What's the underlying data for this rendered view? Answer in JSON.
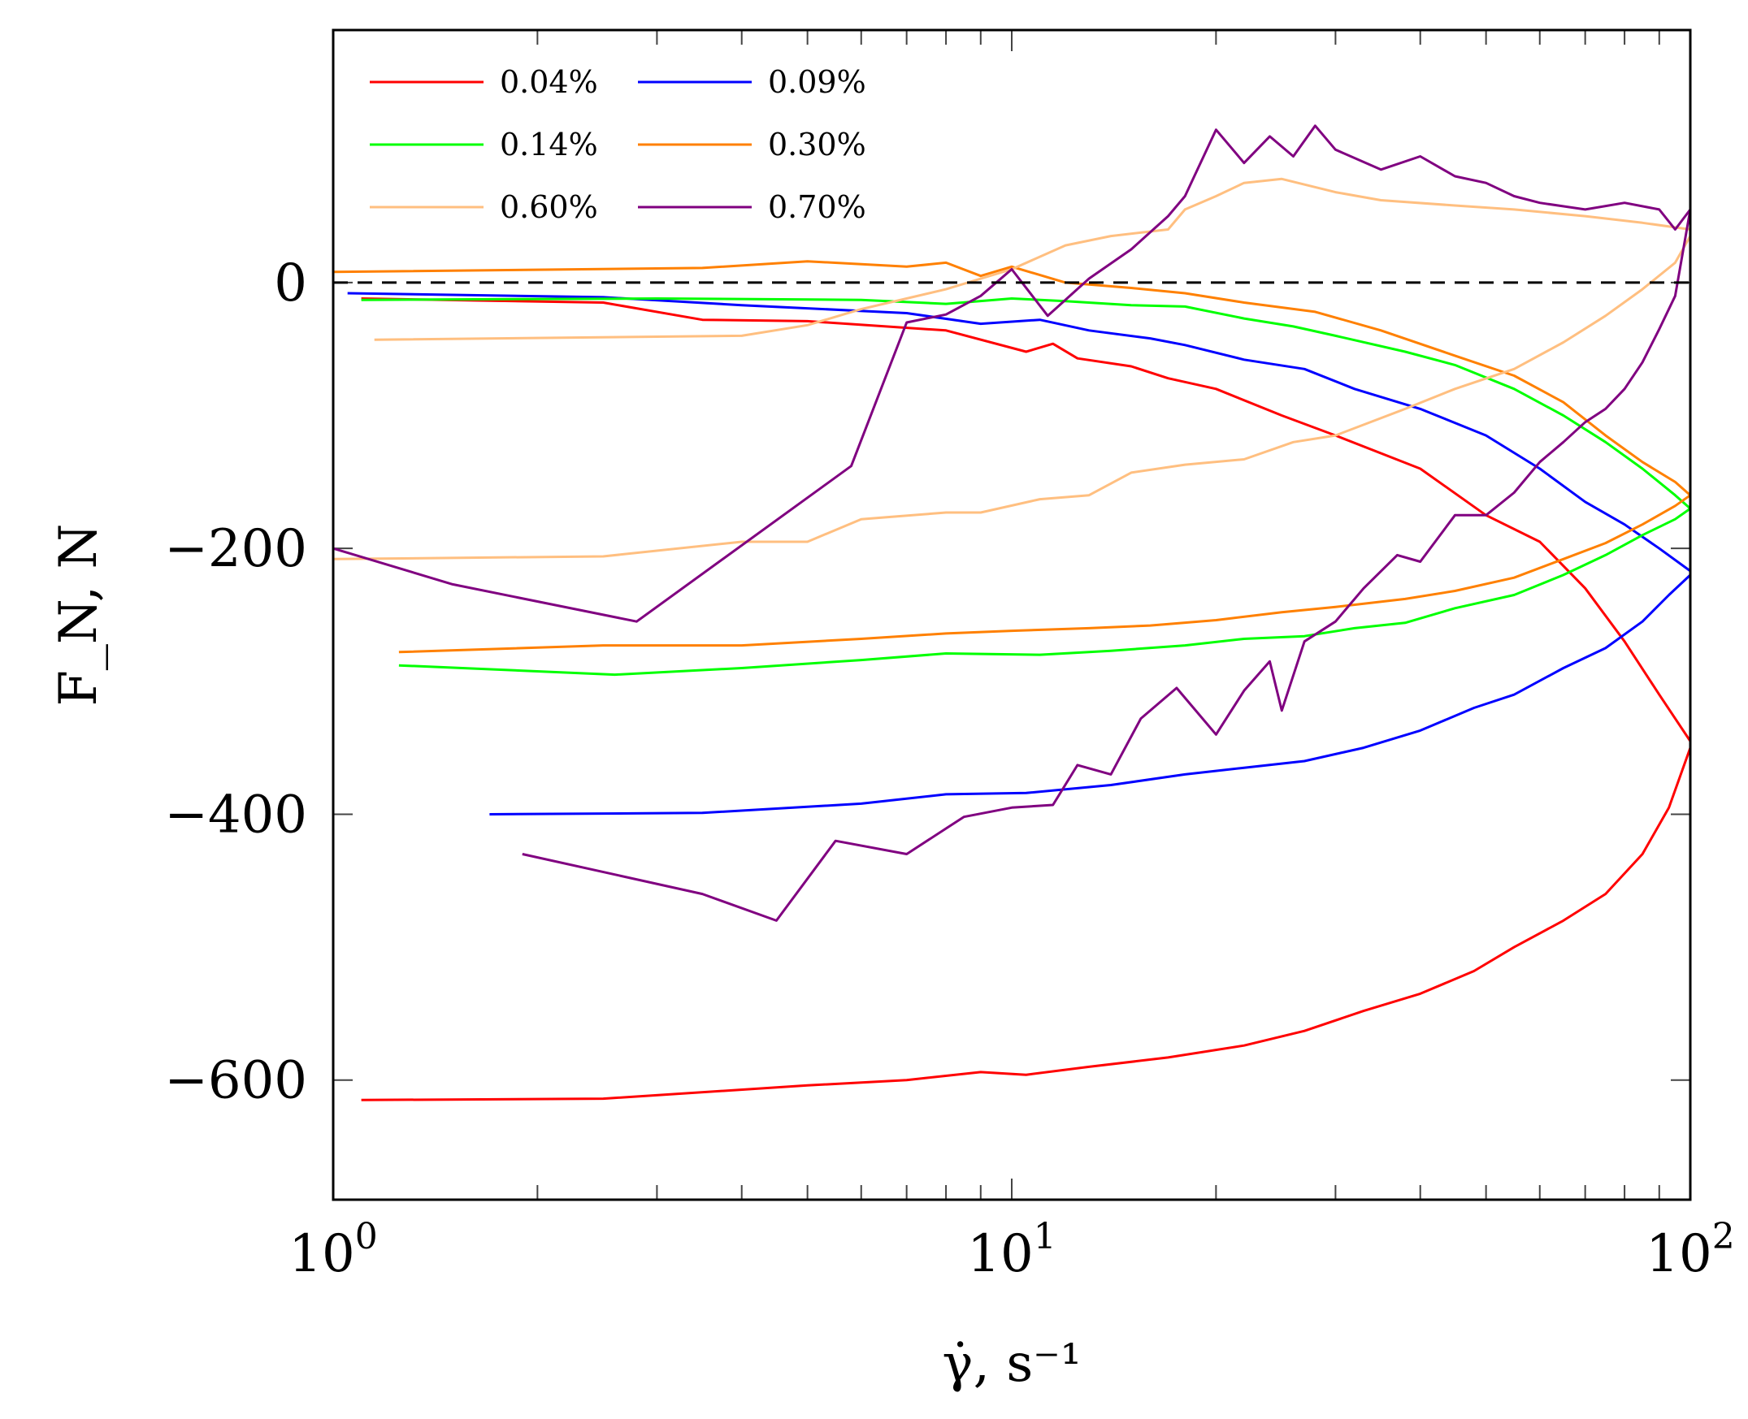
{
  "chart_data": {
    "type": "line",
    "title": "",
    "xlabel": "γ̇, s⁻¹",
    "ylabel": "F_N, N",
    "xscale": "log",
    "xlim": [
      1,
      100
    ],
    "ylim": [
      -690,
      190
    ],
    "x_tick_labels": [
      {
        "value": 1,
        "base": "10",
        "exp": "0"
      },
      {
        "value": 10,
        "base": "10",
        "exp": "1"
      },
      {
        "value": 100,
        "base": "10",
        "exp": "2"
      }
    ],
    "y_tick_labels": [
      {
        "value": 0,
        "label": "0"
      },
      {
        "value": -200,
        "label": "−200"
      },
      {
        "value": -400,
        "label": "−400"
      },
      {
        "value": -600,
        "label": "−600"
      }
    ],
    "reference_line": {
      "y": 0,
      "style": "dashed",
      "color": "#000000"
    },
    "legend_position": "top-left",
    "series": [
      {
        "name": "0.04%",
        "color": "#ff0000",
        "up": [
          [
            1.1,
            -12
          ],
          [
            2.5,
            -15
          ],
          [
            3.5,
            -28
          ],
          [
            5,
            -29
          ],
          [
            8,
            -36
          ],
          [
            10.5,
            -52
          ],
          [
            11.5,
            -46
          ],
          [
            12.5,
            -57
          ],
          [
            15,
            -63
          ],
          [
            17,
            -72
          ],
          [
            20,
            -80
          ],
          [
            25,
            -100
          ],
          [
            30,
            -115
          ],
          [
            40,
            -140
          ],
          [
            50,
            -175
          ],
          [
            60,
            -195
          ],
          [
            70,
            -230
          ],
          [
            80,
            -270
          ],
          [
            90,
            -310
          ],
          [
            100,
            -345
          ]
        ],
        "down": [
          [
            1.1,
            -615
          ],
          [
            2.5,
            -614
          ],
          [
            5,
            -604
          ],
          [
            7,
            -600
          ],
          [
            9,
            -594
          ],
          [
            10.5,
            -596
          ],
          [
            13,
            -590
          ],
          [
            17,
            -583
          ],
          [
            22,
            -574
          ],
          [
            27,
            -563
          ],
          [
            33,
            -548
          ],
          [
            40,
            -535
          ],
          [
            48,
            -518
          ],
          [
            55,
            -500
          ],
          [
            65,
            -480
          ],
          [
            75,
            -460
          ],
          [
            85,
            -430
          ],
          [
            93,
            -395
          ],
          [
            100,
            -350
          ]
        ]
      },
      {
        "name": "0.09%",
        "color": "#0000ff",
        "up": [
          [
            1.05,
            -8
          ],
          [
            2.5,
            -11
          ],
          [
            4,
            -17
          ],
          [
            7,
            -23
          ],
          [
            9,
            -31
          ],
          [
            11,
            -28
          ],
          [
            13,
            -36
          ],
          [
            16,
            -42
          ],
          [
            18,
            -47
          ],
          [
            22,
            -58
          ],
          [
            27,
            -65
          ],
          [
            32,
            -80
          ],
          [
            40,
            -95
          ],
          [
            50,
            -115
          ],
          [
            60,
            -140
          ],
          [
            70,
            -165
          ],
          [
            80,
            -182
          ],
          [
            90,
            -200
          ],
          [
            100,
            -217
          ]
        ],
        "down": [
          [
            1.7,
            -400
          ],
          [
            3.5,
            -399
          ],
          [
            6,
            -392
          ],
          [
            8,
            -385
          ],
          [
            10.5,
            -384
          ],
          [
            14,
            -378
          ],
          [
            18,
            -370
          ],
          [
            22,
            -365
          ],
          [
            27,
            -360
          ],
          [
            33,
            -350
          ],
          [
            40,
            -337
          ],
          [
            48,
            -320
          ],
          [
            55,
            -310
          ],
          [
            65,
            -290
          ],
          [
            75,
            -275
          ],
          [
            85,
            -255
          ],
          [
            93,
            -235
          ],
          [
            100,
            -220
          ]
        ]
      },
      {
        "name": "0.14%",
        "color": "#00ff00",
        "up": [
          [
            1.1,
            -13
          ],
          [
            3,
            -12
          ],
          [
            6,
            -13
          ],
          [
            8,
            -16
          ],
          [
            10,
            -12
          ],
          [
            12,
            -14
          ],
          [
            15,
            -17
          ],
          [
            18,
            -18
          ],
          [
            22,
            -27
          ],
          [
            26,
            -33
          ],
          [
            30,
            -40
          ],
          [
            38,
            -52
          ],
          [
            45,
            -62
          ],
          [
            55,
            -80
          ],
          [
            65,
            -100
          ],
          [
            75,
            -120
          ],
          [
            85,
            -140
          ],
          [
            95,
            -160
          ],
          [
            100,
            -170
          ]
        ],
        "down": [
          [
            1.25,
            -288
          ],
          [
            2.6,
            -295
          ],
          [
            4,
            -290
          ],
          [
            6,
            -284
          ],
          [
            8,
            -279
          ],
          [
            11,
            -280
          ],
          [
            14,
            -277
          ],
          [
            18,
            -273
          ],
          [
            22,
            -268
          ],
          [
            27,
            -266
          ],
          [
            32,
            -260
          ],
          [
            38,
            -256
          ],
          [
            45,
            -245
          ],
          [
            55,
            -235
          ],
          [
            65,
            -220
          ],
          [
            75,
            -205
          ],
          [
            85,
            -190
          ],
          [
            95,
            -178
          ],
          [
            100,
            -170
          ]
        ]
      },
      {
        "name": "0.30%",
        "color": "#ff8000",
        "up": [
          [
            1,
            8
          ],
          [
            3.5,
            11
          ],
          [
            5,
            16
          ],
          [
            7,
            12
          ],
          [
            8,
            15
          ],
          [
            9,
            5
          ],
          [
            10,
            12
          ],
          [
            12,
            0
          ],
          [
            15,
            -4
          ],
          [
            18,
            -8
          ],
          [
            22,
            -15
          ],
          [
            28,
            -22
          ],
          [
            35,
            -36
          ],
          [
            45,
            -55
          ],
          [
            55,
            -70
          ],
          [
            65,
            -90
          ],
          [
            75,
            -115
          ],
          [
            85,
            -135
          ],
          [
            95,
            -150
          ],
          [
            100,
            -160
          ]
        ],
        "down": [
          [
            1.25,
            -278
          ],
          [
            2.5,
            -273
          ],
          [
            4,
            -273
          ],
          [
            6,
            -268
          ],
          [
            8,
            -264
          ],
          [
            10,
            -262
          ],
          [
            13,
            -260
          ],
          [
            16,
            -258
          ],
          [
            20,
            -254
          ],
          [
            25,
            -248
          ],
          [
            30,
            -244
          ],
          [
            38,
            -238
          ],
          [
            45,
            -232
          ],
          [
            55,
            -222
          ],
          [
            65,
            -208
          ],
          [
            75,
            -196
          ],
          [
            85,
            -182
          ],
          [
            95,
            -168
          ],
          [
            100,
            -160
          ]
        ]
      },
      {
        "name": "0.60%",
        "color": "#ffbf80",
        "up": [
          [
            1.15,
            -43
          ],
          [
            4,
            -40
          ],
          [
            5,
            -32
          ],
          [
            6,
            -20
          ],
          [
            8,
            -5
          ],
          [
            10,
            10
          ],
          [
            12,
            28
          ],
          [
            14,
            35
          ],
          [
            17,
            40
          ],
          [
            18,
            55
          ],
          [
            20,
            65
          ],
          [
            22,
            75
          ],
          [
            25,
            78
          ],
          [
            30,
            68
          ],
          [
            35,
            62
          ],
          [
            45,
            58
          ],
          [
            55,
            55
          ],
          [
            70,
            50
          ],
          [
            85,
            45
          ],
          [
            100,
            40
          ]
        ],
        "down": [
          [
            1,
            -208
          ],
          [
            2.5,
            -206
          ],
          [
            4,
            -195
          ],
          [
            5,
            -195
          ],
          [
            6,
            -178
          ],
          [
            8,
            -173
          ],
          [
            9,
            -173
          ],
          [
            11,
            -163
          ],
          [
            13,
            -160
          ],
          [
            15,
            -143
          ],
          [
            18,
            -137
          ],
          [
            22,
            -133
          ],
          [
            26,
            -120
          ],
          [
            30,
            -115
          ],
          [
            38,
            -95
          ],
          [
            45,
            -80
          ],
          [
            55,
            -65
          ],
          [
            65,
            -45
          ],
          [
            75,
            -25
          ],
          [
            85,
            -5
          ],
          [
            95,
            15
          ],
          [
            100,
            35
          ]
        ]
      },
      {
        "name": "0.70%",
        "color": "#800080",
        "up": [
          [
            1,
            -200
          ],
          [
            1.5,
            -227
          ],
          [
            2.8,
            -255
          ],
          [
            5.8,
            -138
          ],
          [
            7,
            -30
          ],
          [
            8,
            -24
          ],
          [
            9,
            -10
          ],
          [
            10,
            10
          ],
          [
            11.3,
            -25
          ],
          [
            13,
            3
          ],
          [
            15,
            25
          ],
          [
            17,
            50
          ],
          [
            18,
            65
          ],
          [
            20,
            115
          ],
          [
            22,
            90
          ],
          [
            24,
            110
          ],
          [
            26,
            95
          ],
          [
            28,
            118
          ],
          [
            30,
            100
          ],
          [
            35,
            85
          ],
          [
            40,
            95
          ],
          [
            45,
            80
          ],
          [
            50,
            75
          ],
          [
            55,
            65
          ],
          [
            60,
            60
          ],
          [
            70,
            55
          ],
          [
            80,
            60
          ],
          [
            90,
            55
          ],
          [
            95,
            40
          ],
          [
            100,
            55
          ]
        ],
        "down": [
          [
            1.9,
            -430
          ],
          [
            3.5,
            -460
          ],
          [
            4.5,
            -480
          ],
          [
            5.5,
            -420
          ],
          [
            7,
            -430
          ],
          [
            8.5,
            -402
          ],
          [
            10,
            -395
          ],
          [
            11.5,
            -393
          ],
          [
            12.5,
            -363
          ],
          [
            14,
            -370
          ],
          [
            15.5,
            -328
          ],
          [
            17.5,
            -305
          ],
          [
            20,
            -340
          ],
          [
            22,
            -307
          ],
          [
            24,
            -285
          ],
          [
            25,
            -322
          ],
          [
            27,
            -270
          ],
          [
            30,
            -255
          ],
          [
            33,
            -230
          ],
          [
            37,
            -205
          ],
          [
            40,
            -210
          ],
          [
            45,
            -175
          ],
          [
            50,
            -175
          ],
          [
            55,
            -158
          ],
          [
            60,
            -135
          ],
          [
            65,
            -120
          ],
          [
            70,
            -105
          ],
          [
            75,
            -95
          ],
          [
            80,
            -80
          ],
          [
            85,
            -60
          ],
          [
            90,
            -35
          ],
          [
            95,
            -10
          ],
          [
            100,
            55
          ]
        ]
      }
    ]
  }
}
